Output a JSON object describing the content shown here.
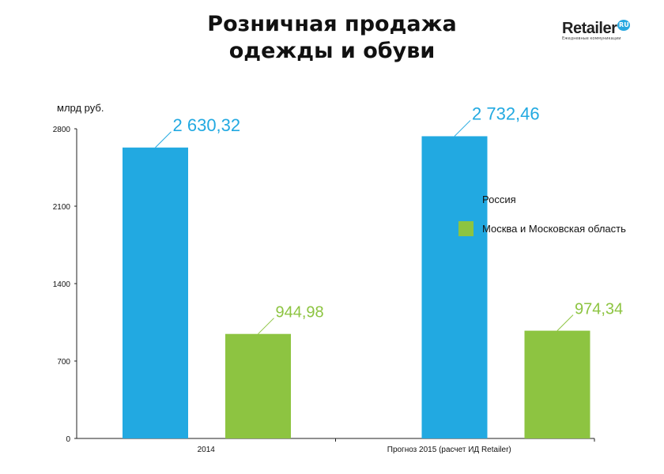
{
  "title_line1": "Розничная продажа",
  "title_line2": "одежды и обуви",
  "logo": {
    "name": "Retailer",
    "badge": "RU",
    "tagline": "Ежедневные коммуникации"
  },
  "chart_data": {
    "type": "bar",
    "title": "Розничная продажа одежды и обуви",
    "ylabel": "млрд руб.",
    "xlabel": "",
    "ylim": [
      0,
      2800
    ],
    "yticks": [
      0,
      700,
      1400,
      2100,
      2800
    ],
    "categories": [
      "2014",
      "Прогноз 2015 (расчет ИД Retailer)"
    ],
    "series": [
      {
        "name": "Россия",
        "color": "#22a9e1",
        "values": [
          2630.32,
          2732.46
        ],
        "labels": [
          "2 630,32",
          "2 732,46"
        ]
      },
      {
        "name": "Москва и Московская область",
        "color": "#8dc441",
        "values": [
          944.98,
          974.34
        ],
        "labels": [
          "944,98",
          "974,34"
        ]
      }
    ],
    "legend": "right",
    "grid": false
  }
}
